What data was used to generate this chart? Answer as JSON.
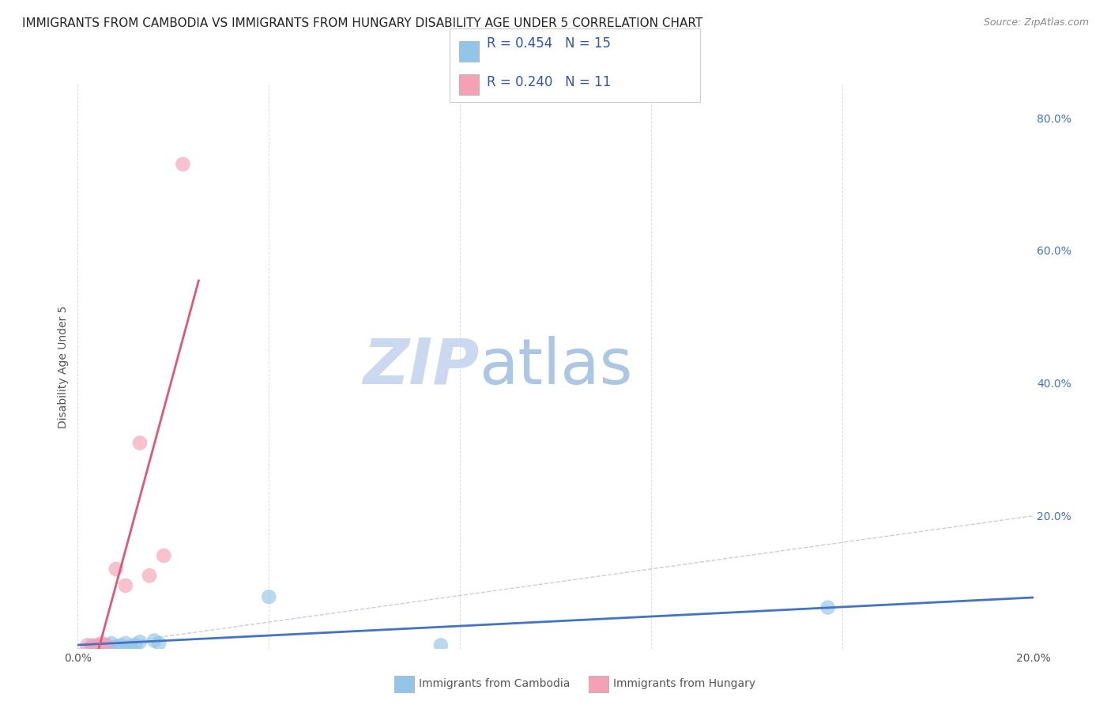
{
  "title": "IMMIGRANTS FROM CAMBODIA VS IMMIGRANTS FROM HUNGARY DISABILITY AGE UNDER 5 CORRELATION CHART",
  "source": "Source: ZipAtlas.com",
  "ylabel": "Disability Age Under 5",
  "xlim": [
    0.0,
    0.2
  ],
  "ylim": [
    0.0,
    0.85
  ],
  "x_ticks": [
    0.0,
    0.04,
    0.08,
    0.12,
    0.16,
    0.2
  ],
  "y_ticks_right": [
    0.0,
    0.2,
    0.4,
    0.6,
    0.8
  ],
  "legend_r1": "R = 0.454",
  "legend_n1": "N = 15",
  "legend_r2": "R = 0.240",
  "legend_n2": "N = 11",
  "scatter_cambodia_x": [
    0.003,
    0.004,
    0.006,
    0.007,
    0.008,
    0.009,
    0.01,
    0.011,
    0.012,
    0.013,
    0.016,
    0.017,
    0.04,
    0.076,
    0.157
  ],
  "scatter_cambodia_y": [
    0.005,
    0.003,
    0.005,
    0.008,
    0.003,
    0.005,
    0.008,
    0.003,
    0.006,
    0.01,
    0.012,
    0.008,
    0.078,
    0.005,
    0.062
  ],
  "scatter_hungary_x": [
    0.002,
    0.003,
    0.004,
    0.005,
    0.006,
    0.008,
    0.01,
    0.013,
    0.015,
    0.018,
    0.022
  ],
  "scatter_hungary_y": [
    0.005,
    0.003,
    0.005,
    0.008,
    0.005,
    0.12,
    0.095,
    0.31,
    0.11,
    0.14,
    0.73
  ],
  "color_cambodia": "#92C5E8",
  "color_hungary": "#F4A0B5",
  "line_cambodia_color": "#4472C4",
  "line_hungary_color": "#E05878",
  "diagonal_color": "#CCCCDD",
  "watermark_zip": "ZIP",
  "watermark_atlas": "atlas",
  "watermark_color_zip": "#C5D5EE",
  "watermark_color_atlas": "#6699CC",
  "title_fontsize": 11,
  "source_fontsize": 9,
  "axis_label_fontsize": 10,
  "tick_fontsize": 10,
  "legend_fontsize": 12
}
